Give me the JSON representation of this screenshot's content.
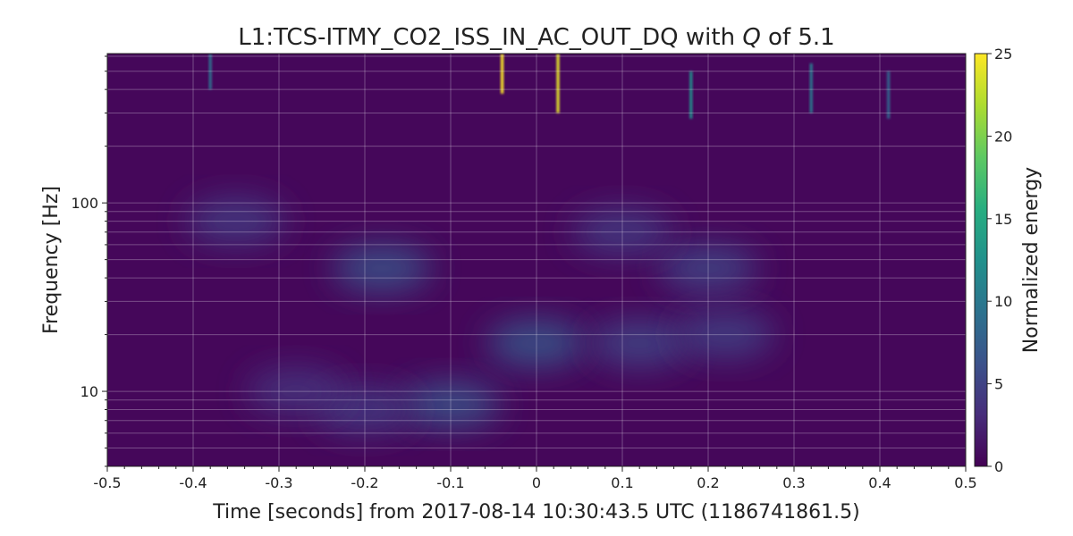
{
  "chart_data": {
    "type": "heatmap",
    "title": {
      "prefix": "L1:TCS-ITMY_CO2_ISS_IN_AC_OUT_DQ with ",
      "q_symbol": "Q",
      "suffix": " of 5.1"
    },
    "xlabel": "Time [seconds] from 2017-08-14 10:30:43.5 UTC (1186741861.5)",
    "ylabel": "Frequency [Hz]",
    "colorbar_label": "Normalized energy",
    "x_range": [
      -0.5,
      0.5
    ],
    "y_range": [
      4,
      620
    ],
    "y_scale": "log",
    "x_ticks": [
      -0.5,
      -0.4,
      -0.3,
      -0.2,
      -0.1,
      0,
      0.1,
      0.2,
      0.3,
      0.4,
      0.5
    ],
    "x_tick_labels": [
      "-0.5",
      "-0.4",
      "-0.3",
      "-0.2",
      "-0.1",
      "0",
      "0.1",
      "0.2",
      "0.3",
      "0.4",
      "0.5"
    ],
    "y_major_ticks": [
      10,
      100
    ],
    "y_major_tick_labels": [
      "10",
      "100"
    ],
    "colorbar_range": [
      0,
      25
    ],
    "colorbar_ticks": [
      0,
      5,
      10,
      15,
      20,
      25
    ],
    "colorbar_tick_labels": [
      "0",
      "5",
      "10",
      "15",
      "20",
      "25"
    ],
    "colormap": "viridis",
    "grid": true,
    "features": [
      {
        "kind": "blob",
        "t": -0.1,
        "f": 8.5,
        "energy": 6.5
      },
      {
        "kind": "blob",
        "t": -0.2,
        "f": 8.0,
        "energy": 4.5
      },
      {
        "kind": "blob",
        "t": -0.28,
        "f": 10.0,
        "energy": 4.0
      },
      {
        "kind": "blob",
        "t": 0.0,
        "f": 18.0,
        "energy": 7.0
      },
      {
        "kind": "blob",
        "t": 0.12,
        "f": 18.0,
        "energy": 5.5
      },
      {
        "kind": "blob",
        "t": 0.22,
        "f": 20.0,
        "energy": 5.0
      },
      {
        "kind": "blob",
        "t": -0.18,
        "f": 45.0,
        "energy": 6.5
      },
      {
        "kind": "blob",
        "t": 0.2,
        "f": 45.0,
        "energy": 5.5
      },
      {
        "kind": "blob",
        "t": -0.35,
        "f": 80.0,
        "energy": 4.5
      },
      {
        "kind": "blob",
        "t": 0.1,
        "f": 70.0,
        "energy": 4.5
      },
      {
        "kind": "spike",
        "t": -0.04,
        "f_min": 380,
        "f_max": 620,
        "energy": 25
      },
      {
        "kind": "spike",
        "t": 0.025,
        "f_min": 300,
        "f_max": 620,
        "energy": 24
      },
      {
        "kind": "spike",
        "t": 0.18,
        "f_min": 280,
        "f_max": 500,
        "energy": 12
      },
      {
        "kind": "spike",
        "t": -0.38,
        "f_min": 400,
        "f_max": 620,
        "energy": 9
      },
      {
        "kind": "spike",
        "t": 0.32,
        "f_min": 300,
        "f_max": 550,
        "energy": 10
      },
      {
        "kind": "spike",
        "t": 0.41,
        "f_min": 280,
        "f_max": 500,
        "energy": 8
      }
    ]
  }
}
